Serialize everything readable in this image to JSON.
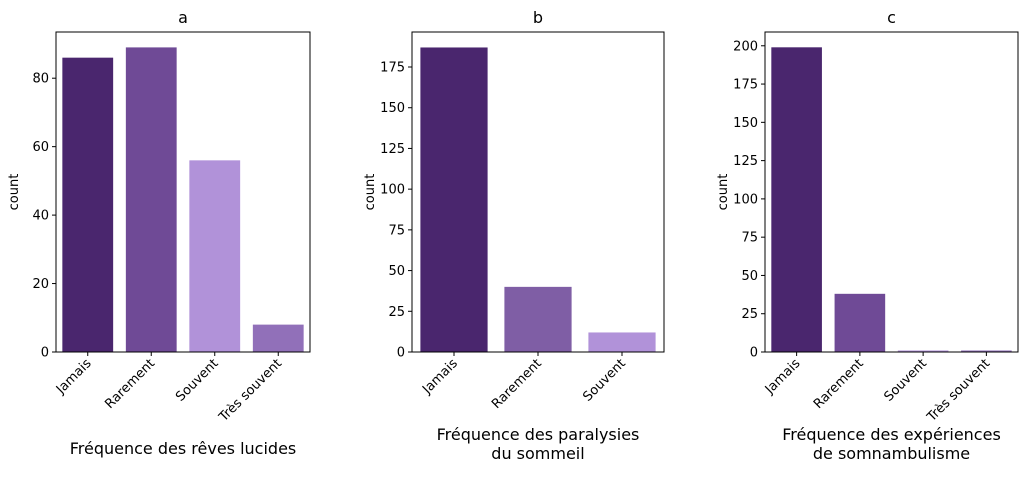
{
  "chart_data": [
    {
      "type": "bar",
      "title": "a",
      "xlabel": "Fréquence des rêves lucides",
      "ylabel": "count",
      "categories": [
        "Jamais",
        "Rarement",
        "Souvent",
        "Très souvent"
      ],
      "values": [
        86,
        89,
        56,
        8
      ],
      "colors": [
        "#4a266e",
        "#6f4a96",
        "#b192d9",
        "#9170b9"
      ],
      "ylim": [
        0,
        93.5
      ],
      "yticks": [
        0,
        20,
        40,
        60,
        80
      ]
    },
    {
      "type": "bar",
      "title": "b",
      "xlabel": "Fréquence des paralysies\ndu sommeil",
      "ylabel": "count",
      "categories": [
        "Jamais",
        "Rarement",
        "Souvent"
      ],
      "values": [
        187,
        40,
        12
      ],
      "colors": [
        "#4a266e",
        "#7f5ea5",
        "#b192d9"
      ],
      "ylim": [
        0,
        196.5
      ],
      "yticks": [
        0,
        25,
        50,
        75,
        100,
        125,
        150,
        175
      ]
    },
    {
      "type": "bar",
      "title": "c",
      "xlabel": "Fréquence des expériences\nde somnambulisme",
      "ylabel": "count",
      "categories": [
        "Jamais",
        "Rarement",
        "Souvent",
        "Très souvent"
      ],
      "values": [
        199,
        38,
        1,
        1
      ],
      "colors": [
        "#4a266e",
        "#6f4a96",
        "#b192d9",
        "#9170b9"
      ],
      "ylim": [
        0,
        209
      ],
      "yticks": [
        0,
        25,
        50,
        75,
        100,
        125,
        150,
        175,
        200
      ]
    }
  ]
}
